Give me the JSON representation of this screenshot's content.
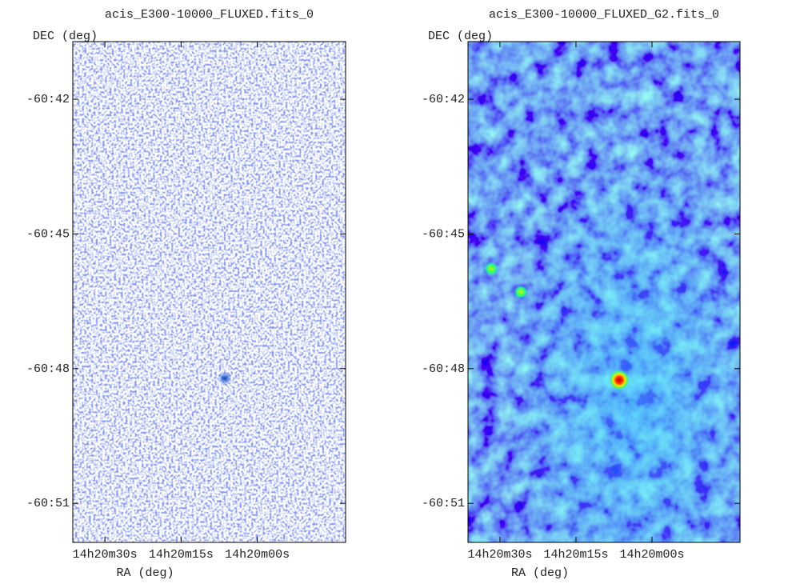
{
  "chart_data": [
    {
      "type": "image",
      "title": "acis_E300-10000_FLUXED.fits_0",
      "x_label": "RA (deg)",
      "y_label": "DEC (deg)",
      "xlim": [
        215.1513,
        214.9276
      ],
      "ylim": [
        -60.8645,
        -60.6786
      ],
      "xticks": [
        {
          "value": 215.125,
          "label": "14h20m30s"
        },
        {
          "value": 215.0625,
          "label": "14h20m15s"
        },
        {
          "value": 215.0,
          "label": "14h20m00s"
        }
      ],
      "yticks": [
        {
          "value": -60.7,
          "label": "-60:42"
        },
        {
          "value": -60.75,
          "label": "-60:45"
        },
        {
          "value": -60.8,
          "label": "-60:48"
        },
        {
          "value": -60.85,
          "label": "-60:51"
        }
      ]
    },
    {
      "type": "image",
      "title": "acis_E300-10000_FLUXED_G2.fits_0",
      "x_label": "RA (deg)",
      "y_label": "DEC (deg)",
      "xlim": [
        215.1513,
        214.9276
      ],
      "ylim": [
        -60.8645,
        -60.6786
      ],
      "xticks": [
        {
          "value": 215.125,
          "label": "14h20m30s"
        },
        {
          "value": 215.0625,
          "label": "14h20m15s"
        },
        {
          "value": 215.0,
          "label": "14h20m00s"
        }
      ],
      "yticks": [
        {
          "value": -60.7,
          "label": "-60:42"
        },
        {
          "value": -60.75,
          "label": "-60:45"
        },
        {
          "value": -60.8,
          "label": "-60:48"
        },
        {
          "value": -60.85,
          "label": "-60:51"
        }
      ]
    }
  ]
}
